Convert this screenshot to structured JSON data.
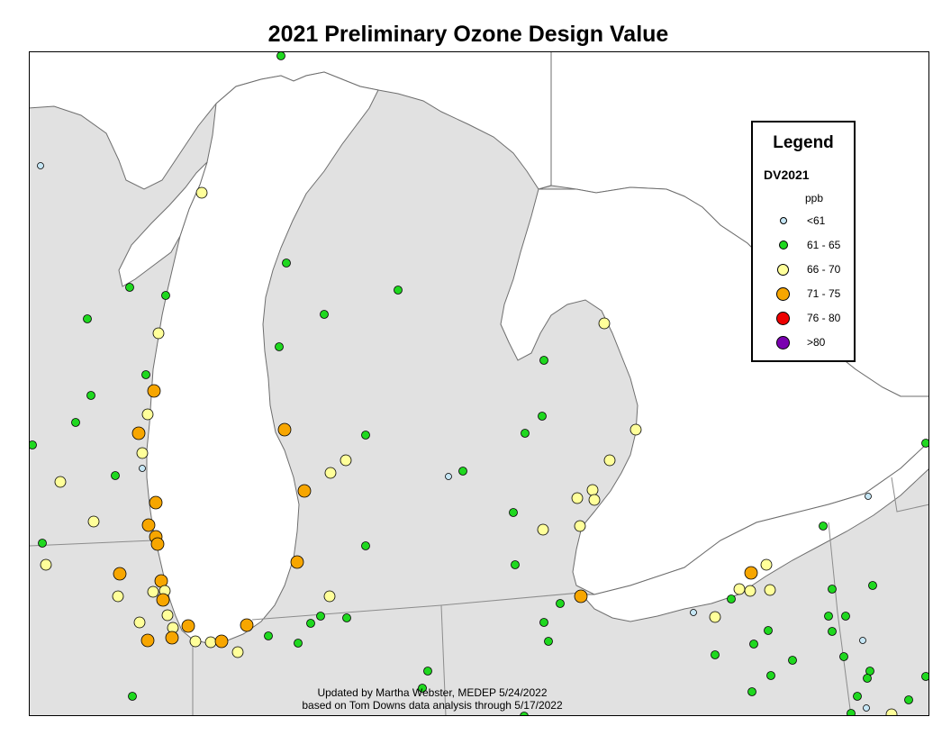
{
  "title": "2021 Preliminary Ozone Design Value",
  "legend": {
    "title": "Legend",
    "field": "DV2021",
    "units": "ppb",
    "classes": [
      {
        "label": "<61",
        "color": "#c5e6f5"
      },
      {
        "label": "61 - 65",
        "color": "#1fd81f"
      },
      {
        "label": "66 - 70",
        "color": "#ffff9a"
      },
      {
        "label": "71 - 75",
        "color": "#f7a600"
      },
      {
        "label": "76 - 80",
        "color": "#ee0000"
      },
      {
        "label": ">80",
        "color": "#7a00b0"
      }
    ]
  },
  "credit": {
    "line1": "Updated by Martha Webster, MEDEP 5/24/2022",
    "line2": "based on Tom Downs data analysis through 5/17/2022"
  },
  "colors": {
    "land": "#e1e1e1",
    "water": "#ffffff",
    "outline": "#6e6e6e",
    "border": "#8c8c8c"
  }
}
